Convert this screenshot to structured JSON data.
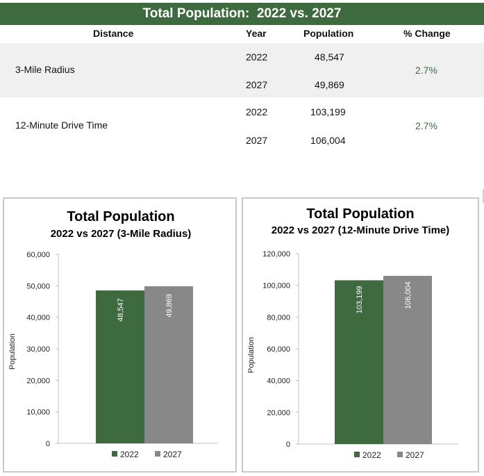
{
  "table": {
    "title": "Total Population:  2022 vs. 2027",
    "headers": {
      "distance": "Distance",
      "year": "Year",
      "population": "Population",
      "change": "% Change"
    },
    "rows": [
      {
        "distance": "3-Mile Radius",
        "year_a": "2022",
        "pop_a": "48,547",
        "year_b": "2027",
        "pop_b": "49,869",
        "change": "2.7%"
      },
      {
        "distance": "12-Minute Drive Time",
        "year_a": "2022",
        "pop_a": "103,199",
        "year_b": "2027",
        "pop_b": "106,004",
        "change": "2.7%"
      }
    ],
    "colors": {
      "header_bg": "#3d6b3f",
      "band_bg": "#f0f0f0",
      "change_text": "#3d6b3f"
    }
  },
  "chart_data": [
    {
      "type": "bar",
      "title": "Total Population",
      "subtitle": "2022 vs 2027 (3-Mile Radius)",
      "ylabel": "Population",
      "xlabel": "",
      "ylim": [
        0,
        60000
      ],
      "yticks": [
        0,
        10000,
        20000,
        30000,
        40000,
        50000,
        60000
      ],
      "ytick_labels": [
        "0",
        "10,000",
        "20,000",
        "30,000",
        "40,000",
        "50,000",
        "60,000"
      ],
      "series": [
        {
          "name": "2022",
          "values": [
            48547
          ],
          "label": "48,547",
          "color": "#3d6b3f"
        },
        {
          "name": "2027",
          "values": [
            49869
          ],
          "label": "49,869",
          "color": "#888888"
        }
      ],
      "grid": false,
      "legend": "bottom"
    },
    {
      "type": "bar",
      "title": "Total Population",
      "subtitle": "2022 vs 2027 (12-Minute Drive Time)",
      "ylabel": "Population",
      "xlabel": "",
      "ylim": [
        0,
        120000
      ],
      "yticks": [
        0,
        20000,
        40000,
        60000,
        80000,
        100000,
        120000
      ],
      "ytick_labels": [
        "0",
        "20,000",
        "40,000",
        "60,000",
        "80,000",
        "100,000",
        "120,000"
      ],
      "series": [
        {
          "name": "2022",
          "values": [
            103199
          ],
          "label": "103,199",
          "color": "#3d6b3f"
        },
        {
          "name": "2027",
          "values": [
            106004
          ],
          "label": "106,004",
          "color": "#888888"
        }
      ],
      "grid": false,
      "legend": "bottom"
    }
  ]
}
